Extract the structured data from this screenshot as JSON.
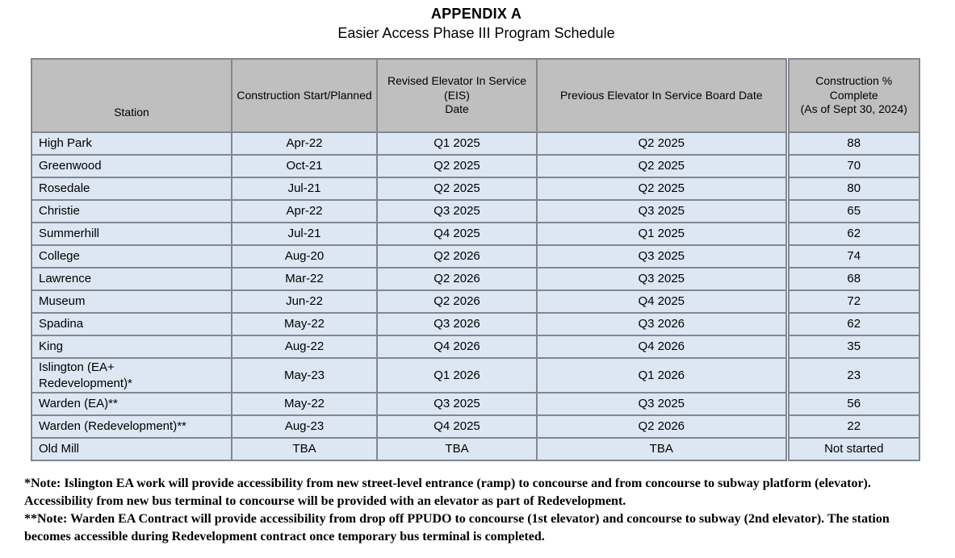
{
  "page": {
    "title": "APPENDIX A",
    "subtitle": "Easier Access Phase III Program Schedule"
  },
  "colors": {
    "header_bg": "#BFBFBF",
    "row_bg": "#DCE7F3",
    "border": "#828790"
  },
  "table": {
    "columns": [
      {
        "key": "station",
        "label": "Station"
      },
      {
        "key": "construction_start",
        "label": "Construction Start/Planned"
      },
      {
        "key": "revised_eis",
        "label": "Revised Elevator In Service (EIS)\nDate"
      },
      {
        "key": "previous_board_date",
        "label": "Previous Elevator In Service Board Date"
      },
      {
        "key": "pct_complete",
        "label": "Construction % Complete\n(As of Sept 30, 2024)"
      }
    ],
    "rows": [
      {
        "station": "High Park",
        "construction_start": "Apr-22",
        "revised_eis": "Q1 2025",
        "previous_board_date": "Q2 2025",
        "pct_complete": "88"
      },
      {
        "station": "Greenwood",
        "construction_start": "Oct-21",
        "revised_eis": "Q2 2025",
        "previous_board_date": "Q2 2025",
        "pct_complete": "70"
      },
      {
        "station": "Rosedale",
        "construction_start": "Jul-21",
        "revised_eis": "Q2 2025",
        "previous_board_date": "Q2 2025",
        "pct_complete": "80"
      },
      {
        "station": "Christie",
        "construction_start": "Apr-22",
        "revised_eis": "Q3 2025",
        "previous_board_date": "Q3 2025",
        "pct_complete": "65"
      },
      {
        "station": "Summerhill",
        "construction_start": "Jul-21",
        "revised_eis": "Q4 2025",
        "previous_board_date": "Q1 2025",
        "pct_complete": "62"
      },
      {
        "station": "College",
        "construction_start": "Aug-20",
        "revised_eis": "Q2 2026",
        "previous_board_date": "Q3 2025",
        "pct_complete": "74"
      },
      {
        "station": "Lawrence",
        "construction_start": "Mar-22",
        "revised_eis": "Q2 2026",
        "previous_board_date": "Q3 2025",
        "pct_complete": "68"
      },
      {
        "station": "Museum",
        "construction_start": "Jun-22",
        "revised_eis": "Q2 2026",
        "previous_board_date": "Q4 2025",
        "pct_complete": "72"
      },
      {
        "station": "Spadina",
        "construction_start": "May-22",
        "revised_eis": "Q3 2026",
        "previous_board_date": "Q3 2026",
        "pct_complete": "62"
      },
      {
        "station": "King",
        "construction_start": "Aug-22",
        "revised_eis": "Q4 2026",
        "previous_board_date": "Q4 2026",
        "pct_complete": "35"
      },
      {
        "station": "Islington (EA+\nRedevelopment)*",
        "construction_start": "May-23",
        "revised_eis": "Q1 2026",
        "previous_board_date": "Q1 2026",
        "pct_complete": "23"
      },
      {
        "station": "Warden (EA)**",
        "construction_start": "May-22",
        "revised_eis": "Q3 2025",
        "previous_board_date": "Q3 2025",
        "pct_complete": "56"
      },
      {
        "station": "Warden (Redevelopment)**",
        "construction_start": "Aug-23",
        "revised_eis": "Q4 2025",
        "previous_board_date": "Q2 2026",
        "pct_complete": "22"
      },
      {
        "station": "Old Mill",
        "construction_start": "TBA",
        "revised_eis": "TBA",
        "previous_board_date": "TBA",
        "pct_complete": "Not started"
      }
    ]
  },
  "notes": [
    "*Note: Islington EA work will provide accessibility from new street-level entrance (ramp) to concourse and from concourse to subway platform (elevator).\nAccessibility from new bus terminal to concourse will be provided with an elevator as part of Redevelopment.",
    "**Note: Warden EA Contract will provide accessibility from drop off PPUDO to concourse (1st elevator) and concourse to subway (2nd elevator). The station\nbecomes accessible during Redevelopment contract once temporary bus terminal is completed."
  ]
}
